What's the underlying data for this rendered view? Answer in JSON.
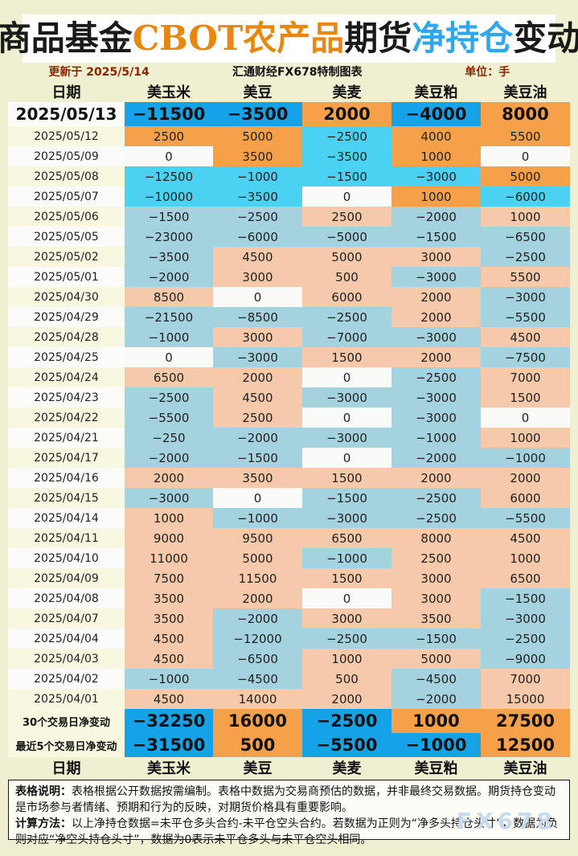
{
  "title": {
    "black1": "商品基金",
    "orange": "CBOT农产品",
    "black2": "期货",
    "blue": "净持仓",
    "black3": "变动"
  },
  "subtitle": {
    "updated": "更新于 2025/5/14",
    "source": "汇通财经FX678特制图表",
    "unit": "单位：手"
  },
  "chart_data": {
    "type": "table",
    "title": "商品基金CBOT农产品期货净持仓变动",
    "unit": "手",
    "columns": [
      "日期",
      "美玉米",
      "美豆",
      "美麦",
      "美豆粕",
      "美豆油"
    ],
    "rows": [
      {
        "date": "2025/05/13",
        "tone": "latest",
        "values": [
          -11500,
          -3500,
          2000,
          -4000,
          8000
        ]
      },
      {
        "date": "2025/05/12",
        "tone": "recent",
        "values": [
          2500,
          5000,
          -2500,
          4000,
          5500
        ]
      },
      {
        "date": "2025/05/09",
        "tone": "recent",
        "values": [
          0,
          3500,
          -3500,
          1000,
          0
        ]
      },
      {
        "date": "2025/05/08",
        "tone": "recent",
        "values": [
          -12500,
          -1000,
          -1500,
          -3000,
          5000
        ]
      },
      {
        "date": "2025/05/07",
        "tone": "recent",
        "values": [
          -10000,
          -3500,
          0,
          1000,
          -6000
        ]
      },
      {
        "date": "2025/05/06",
        "tone": "normal",
        "values": [
          -1500,
          -2500,
          2500,
          -2000,
          1000
        ]
      },
      {
        "date": "2025/05/05",
        "tone": "normal",
        "values": [
          -23000,
          -6000,
          -5000,
          -1500,
          -6500
        ]
      },
      {
        "date": "2025/05/02",
        "tone": "normal",
        "values": [
          -3500,
          4500,
          5000,
          3000,
          -2500
        ]
      },
      {
        "date": "2025/05/01",
        "tone": "normal",
        "values": [
          -2000,
          3000,
          500,
          -3000,
          5500
        ]
      },
      {
        "date": "2025/04/30",
        "tone": "normal",
        "values": [
          8500,
          0,
          6000,
          2000,
          -3000
        ]
      },
      {
        "date": "2025/04/29",
        "tone": "normal",
        "values": [
          -21500,
          -8500,
          -2500,
          2000,
          -5500
        ]
      },
      {
        "date": "2025/04/28",
        "tone": "normal",
        "values": [
          -1000,
          3000,
          -7000,
          -3000,
          4500
        ]
      },
      {
        "date": "2025/04/25",
        "tone": "normal",
        "values": [
          0,
          -3000,
          1500,
          2000,
          -7500
        ]
      },
      {
        "date": "2025/04/24",
        "tone": "normal",
        "values": [
          6500,
          2000,
          0,
          -2500,
          7000
        ]
      },
      {
        "date": "2025/04/23",
        "tone": "normal",
        "values": [
          -2500,
          4500,
          -3000,
          -3000,
          1500
        ]
      },
      {
        "date": "2025/04/22",
        "tone": "normal",
        "values": [
          -5500,
          2500,
          0,
          -3000,
          0
        ]
      },
      {
        "date": "2025/04/21",
        "tone": "normal",
        "values": [
          -250,
          -2000,
          -3000,
          -1000,
          1000
        ]
      },
      {
        "date": "2025/04/17",
        "tone": "normal",
        "values": [
          -2000,
          -1500,
          0,
          -2000,
          -1000
        ]
      },
      {
        "date": "2025/04/16",
        "tone": "normal",
        "values": [
          2000,
          3500,
          1500,
          2000,
          2000
        ]
      },
      {
        "date": "2025/04/15",
        "tone": "normal",
        "values": [
          -3000,
          0,
          -1500,
          -2500,
          6000
        ]
      },
      {
        "date": "2025/04/14",
        "tone": "normal",
        "values": [
          1000,
          -1000,
          -3000,
          -2500,
          -5500
        ]
      },
      {
        "date": "2025/04/11",
        "tone": "normal",
        "values": [
          9000,
          9500,
          6500,
          8000,
          4500
        ]
      },
      {
        "date": "2025/04/10",
        "tone": "normal",
        "values": [
          11000,
          5000,
          -1000,
          2500,
          1000
        ]
      },
      {
        "date": "2025/04/09",
        "tone": "normal",
        "values": [
          7500,
          11500,
          1500,
          3000,
          6500
        ]
      },
      {
        "date": "2025/04/08",
        "tone": "normal",
        "values": [
          3500,
          2000,
          0,
          3000,
          -1500
        ]
      },
      {
        "date": "2025/04/07",
        "tone": "normal",
        "values": [
          3500,
          -2000,
          3000,
          3500,
          -3000
        ]
      },
      {
        "date": "2025/04/04",
        "tone": "normal",
        "values": [
          4500,
          -12000,
          -2500,
          -1500,
          -2500
        ]
      },
      {
        "date": "2025/04/03",
        "tone": "normal",
        "values": [
          4500,
          -6500,
          1000,
          5000,
          -9000
        ]
      },
      {
        "date": "2025/04/02",
        "tone": "normal",
        "values": [
          -1000,
          -4500,
          500,
          -4500,
          7000
        ]
      },
      {
        "date": "2025/04/01",
        "tone": "normal",
        "values": [
          4500,
          14000,
          2000,
          -2000,
          15000
        ]
      }
    ],
    "summary": [
      {
        "label": "30个交易日净变动",
        "values": [
          -32250,
          16000,
          -2500,
          1000,
          27500
        ]
      },
      {
        "label": "最近5个交易日净变动",
        "values": [
          -31500,
          500,
          -5500,
          -1000,
          12500
        ]
      }
    ]
  },
  "footer": {
    "note1_label": "表格说明：",
    "note1": "表格根据公开数据按需编制。表格中数据为交易商预估的数据，并非最终交易数据。期货持仓变动是市场参与者情绪、预期和行为的反映，对期货价格具有重要影响。",
    "note2_label": "计算方法：",
    "note2": "以上净持仓数据=未平仓多头合约-未平仓空头合约。若数据为正则为“净多头持仓头寸”，数据为负则对应“净空头持仓头寸”，数据为0表示未平仓多头与未平仓空头相同。"
  },
  "watermark": "FX678",
  "colors": {
    "deep_blue": "#14A3E6",
    "bright_cyan": "#4BD2F2",
    "bright_orange": "#F7A04A",
    "muted_blue": "#A4D2DF",
    "muted_salmon": "#F5C9A9",
    "zero_bg": "#FAFAF8",
    "title_orange": "#E8870E",
    "title_blue": "#2EA7EE",
    "accent_red": "#8B2500",
    "watermark_blue": "#C9DAEC",
    "page_bg": "#EFEFD2"
  }
}
